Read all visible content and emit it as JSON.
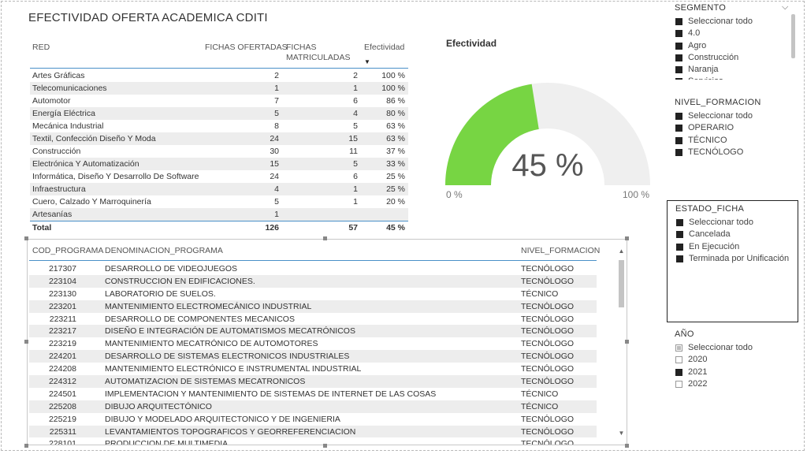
{
  "title": "EFECTIVIDAD OFERTA ACADEMICA  CDITI",
  "summary_table": {
    "headers": {
      "red": "RED",
      "ofertadas": "FICHAS OFERTADAS",
      "matriculadas_line1": "FICHAS",
      "matriculadas_line2": "MATRICULADAS",
      "efectividad": "Efectividad"
    },
    "rows": [
      {
        "red": "Artes Gráficas",
        "ofertadas": "2",
        "matriculadas": "2",
        "efectividad": "100 %"
      },
      {
        "red": "Telecomunicaciones",
        "ofertadas": "1",
        "matriculadas": "1",
        "efectividad": "100 %"
      },
      {
        "red": "Automotor",
        "ofertadas": "7",
        "matriculadas": "6",
        "efectividad": "86 %"
      },
      {
        "red": "Energía Eléctrica",
        "ofertadas": "5",
        "matriculadas": "4",
        "efectividad": "80 %"
      },
      {
        "red": "Mecánica Industrial",
        "ofertadas": "8",
        "matriculadas": "5",
        "efectividad": "63 %"
      },
      {
        "red": "Textil, Confección Diseño Y Moda",
        "ofertadas": "24",
        "matriculadas": "15",
        "efectividad": "63 %"
      },
      {
        "red": "Construcción",
        "ofertadas": "30",
        "matriculadas": "11",
        "efectividad": "37 %"
      },
      {
        "red": "Electrónica Y Automatización",
        "ofertadas": "15",
        "matriculadas": "5",
        "efectividad": "33 %"
      },
      {
        "red": "Informática, Diseño Y Desarrollo De Software",
        "ofertadas": "24",
        "matriculadas": "6",
        "efectividad": "25 %"
      },
      {
        "red": "Infraestructura",
        "ofertadas": "4",
        "matriculadas": "1",
        "efectividad": "25 %"
      },
      {
        "red": "Cuero, Calzado Y Marroquinería",
        "ofertadas": "5",
        "matriculadas": "1",
        "efectividad": "20 %"
      },
      {
        "red": "Artesanías",
        "ofertadas": "1",
        "matriculadas": "",
        "efectividad": ""
      }
    ],
    "total": {
      "label": "Total",
      "ofertadas": "126",
      "matriculadas": "57",
      "efectividad": "45 %"
    }
  },
  "gauge": {
    "label": "Efectividad",
    "value_text": "45 %",
    "value": 0.45,
    "min_label": "0 %",
    "max_label": "100 %",
    "fill_color": "#77d543",
    "track_color": "#efefef"
  },
  "program_table": {
    "headers": {
      "cod": "COD_PROGRAMA",
      "denominacion": "DENOMINACION_PROGRAMA",
      "nivel": "NIVEL_FORMACION"
    },
    "rows": [
      {
        "cod": "217307",
        "denominacion": "DESARROLLO DE VIDEOJUEGOS",
        "nivel": "TECNÓLOGO"
      },
      {
        "cod": "223104",
        "denominacion": "CONSTRUCCION EN EDIFICACIONES.",
        "nivel": "TECNÓLOGO"
      },
      {
        "cod": "223130",
        "denominacion": "LABORATORIO DE SUELOS.",
        "nivel": "TÉCNICO"
      },
      {
        "cod": "223201",
        "denominacion": "MANTENIMIENTO ELECTROMECÁNICO INDUSTRIAL",
        "nivel": "TECNÓLOGO"
      },
      {
        "cod": "223211",
        "denominacion": "DESARROLLO DE COMPONENTES MECANICOS",
        "nivel": "TECNÓLOGO"
      },
      {
        "cod": "223217",
        "denominacion": "DISEÑO E INTEGRACIÓN DE AUTOMATISMOS MECATRÓNICOS",
        "nivel": "TECNÓLOGO"
      },
      {
        "cod": "223219",
        "denominacion": "MANTENIMIENTO MECATRÓNICO DE AUTOMOTORES",
        "nivel": "TECNÓLOGO"
      },
      {
        "cod": "224201",
        "denominacion": "DESARROLLO DE SISTEMAS ELECTRONICOS INDUSTRIALES",
        "nivel": "TECNÓLOGO"
      },
      {
        "cod": "224208",
        "denominacion": "MANTENIMIENTO ELECTRÓNICO E INSTRUMENTAL INDUSTRIAL",
        "nivel": "TECNÓLOGO"
      },
      {
        "cod": "224312",
        "denominacion": "AUTOMATIZACION DE SISTEMAS MECATRONICOS",
        "nivel": "TECNÓLOGO"
      },
      {
        "cod": "224501",
        "denominacion": "IMPLEMENTACION Y MANTENIMIENTO DE SISTEMAS DE INTERNET DE LAS COSAS",
        "nivel": "TÉCNICO"
      },
      {
        "cod": "225208",
        "denominacion": "DIBUJO ARQUITECTÓNICO",
        "nivel": "TÉCNICO"
      },
      {
        "cod": "225219",
        "denominacion": "DIBUJO Y MODELADO ARQUITECTONICO Y DE INGENIERIA",
        "nivel": "TECNÓLOGO"
      },
      {
        "cod": "225311",
        "denominacion": "LEVANTAMIENTOS TOPOGRAFICOS Y GEORREFERENCIACION",
        "nivel": "TECNÓLOGO"
      },
      {
        "cod": "228101",
        "denominacion": "PRODUCCION DE MULTIMEDIA",
        "nivel": "TECNÓLOGO"
      }
    ]
  },
  "slicers": {
    "segmento": {
      "title": "SEGMENTO",
      "items": [
        "Seleccionar todo",
        "4.0",
        "Agro",
        "Construcción",
        "Naranja",
        "Servicios"
      ]
    },
    "nivel_formacion": {
      "title": "NIVEL_FORMACION",
      "items": [
        "Seleccionar todo",
        "OPERARIO",
        "TÉCNICO",
        "TECNÓLOGO"
      ]
    },
    "estado_ficha": {
      "title": "ESTADO_FICHA",
      "items": [
        "Seleccionar todo",
        "Cancelada",
        "En Ejecución",
        "Terminada por Unificación"
      ]
    },
    "anio": {
      "title": "AÑO",
      "items": [
        {
          "label": "Seleccionar todo",
          "state": "partial"
        },
        {
          "label": "2020",
          "state": "unchecked"
        },
        {
          "label": "2021",
          "state": "checked"
        },
        {
          "label": "2022",
          "state": "unchecked"
        }
      ]
    }
  }
}
